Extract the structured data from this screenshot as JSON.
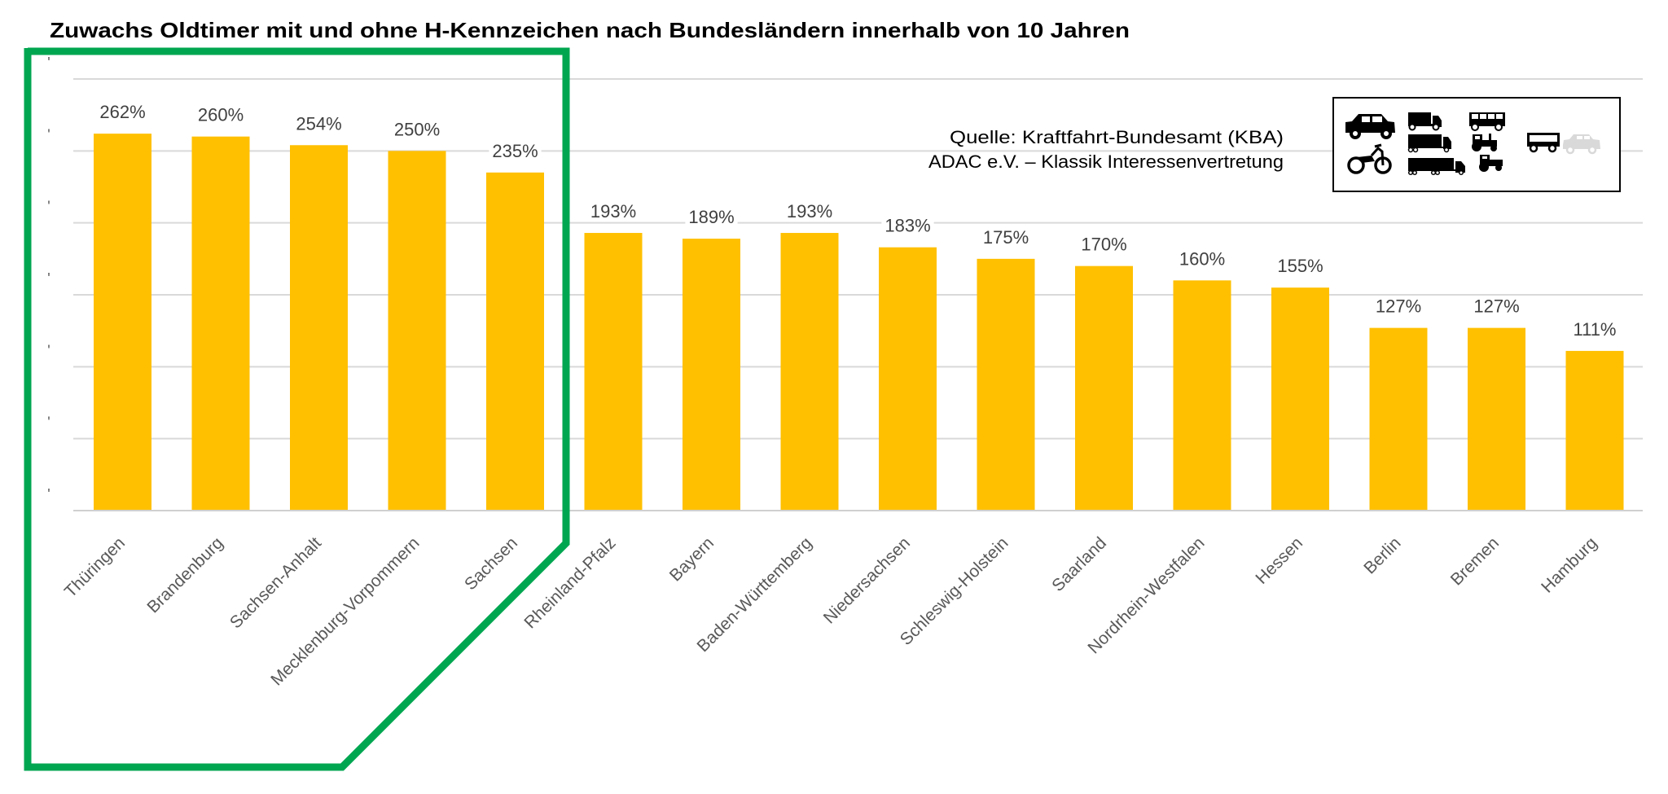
{
  "chart_data": {
    "type": "bar",
    "title": "Zuwachs Oldtimer mit und ohne H-Kennzeichen nach Bundesländern innerhalb von 10 Jahren",
    "xlabel": "",
    "ylabel": "",
    "ylim": [
      0,
      300
    ],
    "y_ticks": [
      0,
      50,
      100,
      150,
      200,
      250,
      300
    ],
    "y_tick_labels": [
      "'",
      "'",
      "'",
      "'",
      "'",
      "'",
      "'"
    ],
    "grid": true,
    "categories": [
      "Thüringen",
      "Brandenburg",
      "Sachsen-Anhalt",
      "Mecklenburg-Vorpommern",
      "Sachsen",
      "Rheinland-Pfalz",
      "Bayern",
      "Baden-Württemberg",
      "Niedersachsen",
      "Schleswig-Holstein",
      "Saarland",
      "Nordrhein-Westfalen",
      "Hessen",
      "Berlin",
      "Bremen",
      "Hamburg"
    ],
    "values": [
      262,
      260,
      254,
      250,
      235,
      193,
      189,
      193,
      183,
      175,
      170,
      160,
      155,
      127,
      127,
      111
    ],
    "data_labels": [
      "262%",
      "260%",
      "254%",
      "250%",
      "235%",
      "193%",
      "189%",
      "193%",
      "183%",
      "175%",
      "170%",
      "160%",
      "155%",
      "127%",
      "127%",
      "111%"
    ],
    "unit": "%",
    "highlighted_categories": [
      "Thüringen",
      "Brandenburg",
      "Sachsen-Anhalt",
      "Mecklenburg-Vorpommern",
      "Sachsen"
    ],
    "source_lines": [
      "Quelle: Kraftfahrt-Bundesamt (KBA)",
      "ADAC e.V. – Klassik Interessenvertretung"
    ],
    "legend_icons": [
      "car-icon",
      "motorcycle-icon",
      "truck-icon",
      "lorry-icon",
      "semi-truck-icon",
      "bus-icon",
      "tractor-icon",
      "small-tractor-icon",
      "trailer-icon",
      "car-outline-icon"
    ]
  },
  "colors": {
    "bar": "#FFC000",
    "highlight": "#00A650",
    "grid": "#D9D9D9",
    "text": "#404040"
  }
}
